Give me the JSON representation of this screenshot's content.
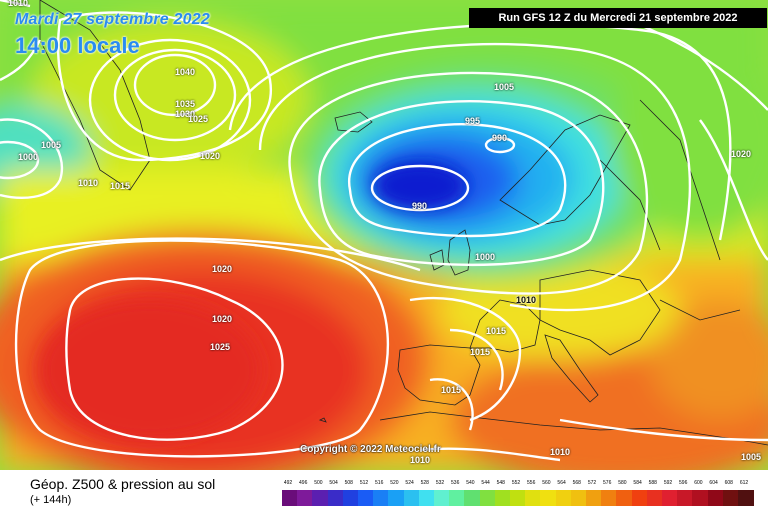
{
  "header": {
    "date": "Mardi 27 septembre 2022",
    "time": "14:00 locale",
    "run": "Run GFS 12 Z du Mercredi 21 septembre 2022"
  },
  "copyright": "Copyright © 2022 Meteociel.fr",
  "footer": {
    "title": "Géop. Z500 & pression au sol",
    "subtitle": "(+ 144h)"
  },
  "isobar_labels": [
    {
      "id": "l1010-topleft",
      "text": "1010"
    },
    {
      "id": "l1040",
      "text": "1040"
    },
    {
      "id": "l1035",
      "text": "1035"
    },
    {
      "id": "l1030",
      "text": "1030"
    },
    {
      "id": "l1025-north",
      "text": "1025"
    },
    {
      "id": "l1020-greenland",
      "text": "1020"
    },
    {
      "id": "l1005-west",
      "text": "1005"
    },
    {
      "id": "l1000-west",
      "text": "1000"
    },
    {
      "id": "l1010-west",
      "text": "1010"
    },
    {
      "id": "l1015-west",
      "text": "1015"
    },
    {
      "id": "l1005-north",
      "text": "1005"
    },
    {
      "id": "l995",
      "text": "995"
    },
    {
      "id": "l990-east",
      "text": "990"
    },
    {
      "id": "l990-core",
      "text": "990"
    },
    {
      "id": "l1000-mid",
      "text": "1000"
    },
    {
      "id": "l1020-east",
      "text": "1020"
    },
    {
      "id": "l1020-atl",
      "text": "1020"
    },
    {
      "id": "l1020-azores",
      "text": "1020"
    },
    {
      "id": "l1025-azores",
      "text": "1025"
    },
    {
      "id": "l1010-france",
      "text": "1010"
    },
    {
      "id": "l1015-a",
      "text": "1015"
    },
    {
      "id": "l1015-b",
      "text": "1015"
    },
    {
      "id": "l1015-c",
      "text": "1015"
    },
    {
      "id": "l1010-south",
      "text": "1010"
    },
    {
      "id": "l1010-bottom",
      "text": "1010"
    },
    {
      "id": "l1005-se",
      "text": "1005"
    }
  ],
  "scale": {
    "labels": [
      "492",
      "496",
      "500",
      "504",
      "508",
      "512",
      "516",
      "520",
      "524",
      "528",
      "532",
      "536",
      "540",
      "544",
      "548",
      "552",
      "556",
      "560",
      "564",
      "568",
      "572",
      "576",
      "580",
      "584",
      "588",
      "592",
      "596",
      "600",
      "604",
      "608",
      "612"
    ],
    "colors": [
      "#6a0d7a",
      "#7e1a9a",
      "#5b1fb0",
      "#3a2cc8",
      "#2040e0",
      "#1a5cf5",
      "#1a7ff5",
      "#1aa0f5",
      "#2bc0f0",
      "#40e0f0",
      "#60f0d0",
      "#60f0a0",
      "#60e070",
      "#80e040",
      "#a0e020",
      "#c0e010",
      "#e0e010",
      "#f0e010",
      "#f0d010",
      "#f0c010",
      "#f0a010",
      "#f08010",
      "#f06010",
      "#f04010",
      "#e83020",
      "#e02030",
      "#c81828",
      "#b01020",
      "#900818",
      "#701010",
      "#501010"
    ]
  }
}
